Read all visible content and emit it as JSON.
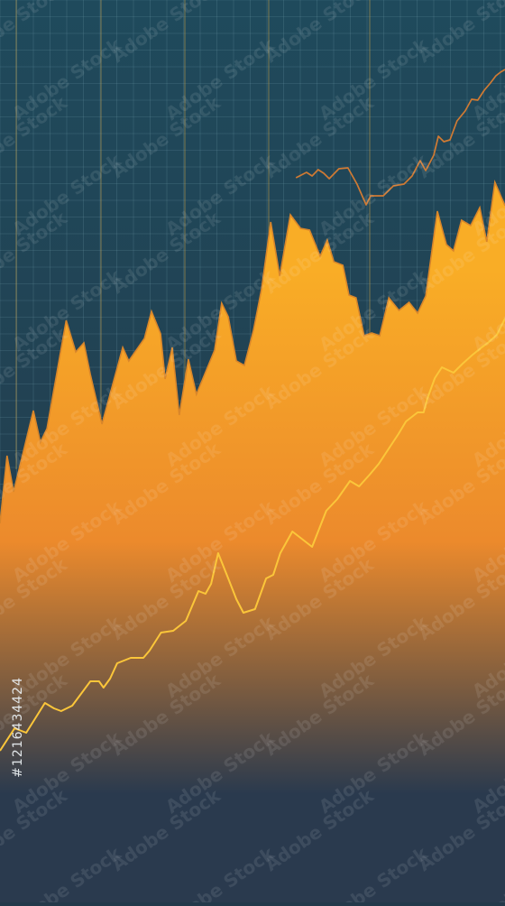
{
  "chart_data": {
    "type": "area",
    "xlim": [
      0,
      100
    ],
    "ylim": [
      0,
      100
    ],
    "grid": true,
    "legend": "none",
    "colors": {
      "background_top": "#1f4a5c",
      "background_bottom": "#253848",
      "grid": "#6f9aa8",
      "grid_vertical": "#c9a24a",
      "area_top": "#f9ad26",
      "area_mid": "#ec8a2c",
      "area_bottom": "#2a3a4e",
      "area_outline": "#d9862a",
      "line_bright": "#fbc63a",
      "line_dim": "#d07a33"
    },
    "series": [
      {
        "kind": "area",
        "values": [
          [
            0,
            42
          ],
          [
            1.4,
            49.5
          ],
          [
            2.7,
            45.5
          ],
          [
            6.6,
            54.5
          ],
          [
            8,
            51
          ],
          [
            9.3,
            52.5
          ],
          [
            13.1,
            64.5
          ],
          [
            15,
            61
          ],
          [
            16.6,
            62
          ],
          [
            17.9,
            58.5
          ],
          [
            20.2,
            53
          ],
          [
            24.3,
            61.5
          ],
          [
            25.5,
            60
          ],
          [
            28.6,
            62.5
          ],
          [
            30,
            65.5
          ],
          [
            31.8,
            63
          ],
          [
            32.7,
            58
          ],
          [
            34.1,
            61.5
          ],
          [
            35.5,
            54
          ],
          [
            37.3,
            60.2
          ],
          [
            38.9,
            56.3
          ],
          [
            42.5,
            61.2
          ],
          [
            43.9,
            66.4
          ],
          [
            45.2,
            64.9
          ],
          [
            46.8,
            60
          ],
          [
            48.4,
            59.5
          ],
          [
            50.2,
            63.4
          ],
          [
            51.8,
            68
          ],
          [
            53.6,
            75.4
          ],
          [
            55.4,
            69.4
          ],
          [
            57.5,
            76.2
          ],
          [
            59.5,
            74.7
          ],
          [
            61.3,
            74.5
          ],
          [
            63.4,
            71.6
          ],
          [
            64.8,
            73.4
          ],
          [
            66.1,
            71
          ],
          [
            67.9,
            70.6
          ],
          [
            69.1,
            67.3
          ],
          [
            70.5,
            67
          ],
          [
            72.1,
            62.8
          ],
          [
            73.6,
            63.1
          ],
          [
            75.2,
            62.8
          ],
          [
            77,
            67
          ],
          [
            79,
            65.6
          ],
          [
            81,
            66.5
          ],
          [
            82.7,
            65.3
          ],
          [
            84.3,
            67.2
          ],
          [
            86.6,
            76.6
          ],
          [
            88.4,
            72.9
          ],
          [
            89.8,
            72.2
          ],
          [
            91.4,
            75.6
          ],
          [
            93.2,
            75
          ],
          [
            95,
            77
          ],
          [
            96.4,
            73.2
          ],
          [
            98,
            79.8
          ],
          [
            100,
            77.2
          ]
        ]
      },
      {
        "kind": "line",
        "values": [
          [
            0,
            16.8
          ],
          [
            2.9,
            19.3
          ],
          [
            5.2,
            18.8
          ],
          [
            8.9,
            22.1
          ],
          [
            10.7,
            21.5
          ],
          [
            12.1,
            21.2
          ],
          [
            14.3,
            21.8
          ],
          [
            17.9,
            24.5
          ],
          [
            19.6,
            24.5
          ],
          [
            20.5,
            23.8
          ],
          [
            21.8,
            24.8
          ],
          [
            23.2,
            26.5
          ],
          [
            25.9,
            27.1
          ],
          [
            28.4,
            27.1
          ],
          [
            29.6,
            27.9
          ],
          [
            31.9,
            29.9
          ],
          [
            34.3,
            30.1
          ],
          [
            36.8,
            31.2
          ],
          [
            39.3,
            34.5
          ],
          [
            40.7,
            34.2
          ],
          [
            41.8,
            35.3
          ],
          [
            43.2,
            38.7
          ],
          [
            45.2,
            35.9
          ],
          [
            46.8,
            33.6
          ],
          [
            48.2,
            32.1
          ],
          [
            50.5,
            32.5
          ],
          [
            52.7,
            35.9
          ],
          [
            54.1,
            36.3
          ],
          [
            55.5,
            38.7
          ],
          [
            57.9,
            41.1
          ],
          [
            61.8,
            39.4
          ],
          [
            64.6,
            43.4
          ],
          [
            66.8,
            44.7
          ],
          [
            69.3,
            46.7
          ],
          [
            71.1,
            46.1
          ],
          [
            73.2,
            47.4
          ],
          [
            75,
            48.6
          ],
          [
            77,
            50.3
          ],
          [
            78.9,
            51.9
          ],
          [
            80.4,
            53.3
          ],
          [
            82.7,
            54.3
          ],
          [
            83.9,
            54.3
          ],
          [
            84.6,
            55.8
          ],
          [
            86.1,
            58.1
          ],
          [
            87.5,
            59.3
          ],
          [
            89.8,
            58.7
          ],
          [
            91.6,
            59.7
          ],
          [
            93.6,
            60.7
          ],
          [
            95.4,
            61.5
          ],
          [
            96.8,
            62.1
          ],
          [
            98.4,
            62.9
          ],
          [
            100,
            64.7
          ]
        ]
      },
      {
        "kind": "line",
        "values": [
          [
            58.6,
            80.3
          ],
          [
            60.7,
            80.9
          ],
          [
            61.8,
            80.5
          ],
          [
            63,
            81.2
          ],
          [
            64.1,
            80.8
          ],
          [
            65.2,
            80.2
          ],
          [
            67.1,
            81.3
          ],
          [
            68.9,
            81.4
          ],
          [
            70.7,
            79.6
          ],
          [
            72.5,
            77.3
          ],
          [
            73.4,
            78.3
          ],
          [
            75.9,
            78.3
          ],
          [
            77.9,
            79.4
          ],
          [
            80,
            79.6
          ],
          [
            81.6,
            80.5
          ],
          [
            83.2,
            82.2
          ],
          [
            84.3,
            81.1
          ],
          [
            85.9,
            82.8
          ],
          [
            86.8,
            84.9
          ],
          [
            87.9,
            84.3
          ],
          [
            89.1,
            84.5
          ],
          [
            90.5,
            86.6
          ],
          [
            92.1,
            87.7
          ],
          [
            93.4,
            89
          ],
          [
            94.6,
            88.9
          ],
          [
            95.9,
            90
          ],
          [
            97.1,
            90.8
          ],
          [
            98.2,
            91.6
          ],
          [
            99.1,
            92
          ],
          [
            100,
            92.3
          ]
        ]
      }
    ]
  },
  "watermark": {
    "text": "Adobe Stock",
    "stock_id": "#1216434424"
  }
}
